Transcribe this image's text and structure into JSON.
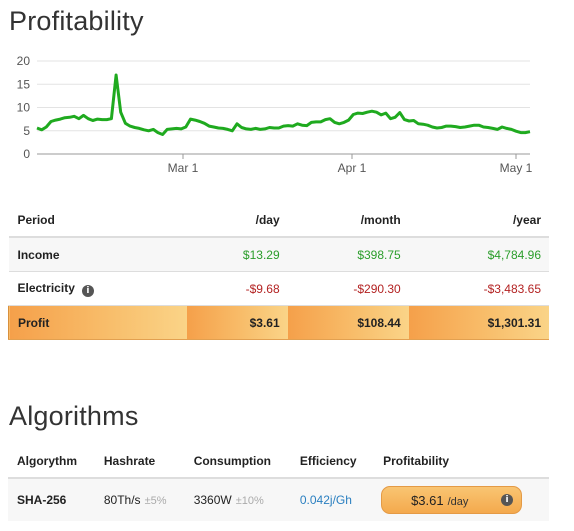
{
  "profitability": {
    "title": "Profitability",
    "chart_data": {
      "type": "line",
      "title": "",
      "xlabel": "",
      "ylabel": "",
      "ylim": [
        0,
        20
      ],
      "yticks": [
        "0",
        "5",
        "10",
        "15",
        "20"
      ],
      "xticks": [
        "Mar 1",
        "Apr 1",
        "May 1"
      ],
      "grid": true,
      "color": "#1faa1f",
      "series": [
        {
          "values": [
            5.6,
            5.2,
            5.8,
            7.0,
            7.3,
            7.5,
            7.8,
            7.9,
            8.1,
            7.6,
            8.3,
            7.6,
            7.2,
            7.5,
            7.4,
            7.4,
            7.6,
            17.0,
            9.0,
            6.6,
            6.0,
            5.7,
            5.5,
            5.2,
            5.0,
            5.3,
            4.6,
            4.2,
            5.3,
            5.4,
            5.5,
            5.4,
            5.8,
            7.5,
            7.3,
            7.0,
            6.6,
            6.0,
            5.8,
            5.6,
            5.5,
            5.3,
            5.0,
            6.5,
            5.7,
            5.4,
            5.3,
            5.5,
            5.3,
            5.4,
            5.7,
            5.6,
            5.6,
            6.0,
            6.1,
            6.0,
            6.5,
            6.2,
            6.1,
            6.8,
            6.9,
            6.9,
            7.4,
            7.6,
            6.8,
            6.5,
            6.8,
            7.3,
            8.5,
            8.8,
            8.7,
            9.0,
            9.2,
            9.0,
            8.4,
            8.8,
            7.6,
            7.9,
            8.9,
            7.4,
            7.1,
            7.2,
            6.5,
            6.4,
            6.2,
            5.8,
            5.6,
            5.7,
            6.0,
            6.0,
            5.9,
            5.7,
            5.8,
            6.0,
            6.2,
            6.2,
            5.8,
            5.7,
            5.5,
            5.3,
            5.8,
            5.5,
            5.3,
            4.9,
            4.6,
            4.6,
            4.8
          ]
        }
      ]
    }
  },
  "profit_table": {
    "headers": [
      "Period",
      "/day",
      "/month",
      "/year"
    ],
    "income": {
      "label": "Income",
      "day": "$13.29",
      "month": "$398.75",
      "year": "$4,784.96"
    },
    "electricity": {
      "label": "Electricity",
      "info_icon": "info-icon",
      "day": "-$9.68",
      "month": "-$290.30",
      "year": "-$3,483.65"
    },
    "profit": {
      "label": "Profit",
      "day": "$3.61",
      "month": "$108.44",
      "year": "$1,301.31"
    }
  },
  "algorithms": {
    "title": "Algorithms",
    "headers": [
      "Algorythm",
      "Hashrate",
      "Consumption",
      "Efficiency",
      "Profitability"
    ],
    "rows": [
      {
        "name": "SHA-256",
        "hashrate": "80Th/s",
        "hashrate_tol": "±5%",
        "consumption": "3360W",
        "consumption_tol": "±10%",
        "efficiency": "0.042j/Gh",
        "profit_amount": "$3.61",
        "profit_period": "/day",
        "info_icon": "info-icon"
      }
    ]
  },
  "colors": {
    "positive": "#2a9d2a",
    "negative": "#b32222",
    "line": "#1faa1f",
    "profit_accent": "#f5a04a",
    "link": "#2a7fc0"
  }
}
